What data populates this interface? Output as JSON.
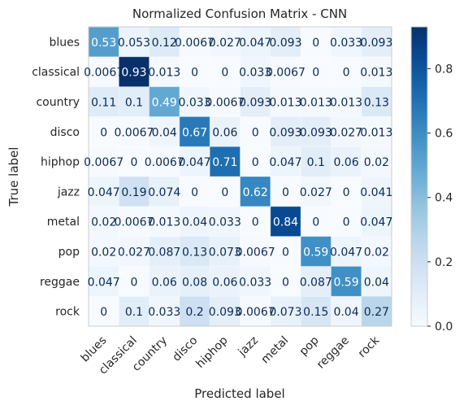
{
  "chart_data": {
    "type": "heatmap",
    "title": "Normalized Confusion Matrix - CNN",
    "xlabel": "Predicted label",
    "ylabel": "True label",
    "x_categories": [
      "blues",
      "classical",
      "country",
      "disco",
      "hiphop",
      "jazz",
      "metal",
      "pop",
      "reggae",
      "rock"
    ],
    "y_categories": [
      "blues",
      "classical",
      "country",
      "disco",
      "hiphop",
      "jazz",
      "metal",
      "pop",
      "reggae",
      "rock"
    ],
    "cell_labels": [
      [
        "0.53",
        "0.053",
        "0.12",
        "0.0067",
        "0.027",
        "0.047",
        "0.093",
        "0",
        "0.033",
        "0.093"
      ],
      [
        "0.0067",
        "0.93",
        "0.013",
        "0",
        "0",
        "0.033",
        "0.0067",
        "0",
        "0",
        "0.013"
      ],
      [
        "0.11",
        "0.1",
        "0.49",
        "0.033",
        "0.0067",
        "0.093",
        "0.013",
        "0.013",
        "0.013",
        "0.13"
      ],
      [
        "0",
        "0.0067",
        "0.04",
        "0.67",
        "0.06",
        "0",
        "0.093",
        "0.093",
        "0.027",
        "0.013"
      ],
      [
        "0.0067",
        "0",
        "0.0067",
        "0.047",
        "0.71",
        "0",
        "0.047",
        "0.1",
        "0.06",
        "0.02"
      ],
      [
        "0.047",
        "0.19",
        "0.074",
        "0",
        "0",
        "0.62",
        "0",
        "0.027",
        "0",
        "0.041"
      ],
      [
        "0.02",
        "0.0067",
        "0.013",
        "0.04",
        "0.033",
        "0",
        "0.84",
        "0",
        "0",
        "0.047"
      ],
      [
        "0.02",
        "0.027",
        "0.087",
        "0.13",
        "0.073",
        "0.0067",
        "0",
        "0.59",
        "0.047",
        "0.02"
      ],
      [
        "0.047",
        "0",
        "0.06",
        "0.08",
        "0.06",
        "0.033",
        "0",
        "0.087",
        "0.59",
        "0.04"
      ],
      [
        "0",
        "0.1",
        "0.033",
        "0.2",
        "0.093",
        "0.0067",
        "0.073",
        "0.15",
        "0.04",
        "0.27"
      ]
    ],
    "colorbar": {
      "min": 0,
      "max": 0.93,
      "ticks": [
        0.0,
        0.2,
        0.4,
        0.6,
        0.8
      ],
      "tick_labels": [
        "0.0",
        "0.2",
        "0.4",
        "0.6",
        "0.8"
      ]
    },
    "colormap": "Blues",
    "grid": true
  }
}
